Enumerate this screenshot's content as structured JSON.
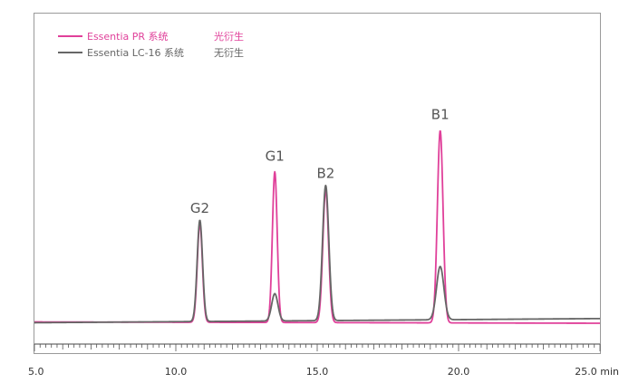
{
  "chart_data": {
    "type": "line",
    "xlabel": "",
    "ylabel": "",
    "xlim": [
      5.0,
      25.0
    ],
    "ylim": [
      0,
      100
    ],
    "x_unit": "min",
    "x_ticks": [
      {
        "value": 5.0,
        "label": "5.0"
      },
      {
        "value": 10.0,
        "label": "10.0"
      },
      {
        "value": 15.0,
        "label": "15.0"
      },
      {
        "value": 20.0,
        "label": "20.0"
      },
      {
        "value": 25.0,
        "label": "25.0 min"
      }
    ],
    "grid": false,
    "legend_position": "top-left",
    "legend": [
      {
        "name": "Essentia PR 系统",
        "note": "光衍生",
        "color": "#e0409a"
      },
      {
        "name": "Essentia LC-16 系统",
        "note": "无衍生",
        "color": "#666666"
      }
    ],
    "series": [
      {
        "name": "Essentia PR 系统",
        "color": "#e0409a",
        "baseline": 0.5,
        "drift": -0.5,
        "peaks": [
          {
            "x": 10.85,
            "height": 38,
            "sigma": 0.09
          },
          {
            "x": 13.5,
            "height": 58,
            "sigma": 0.085
          },
          {
            "x": 15.3,
            "height": 51,
            "sigma": 0.1
          },
          {
            "x": 19.35,
            "height": 74,
            "sigma": 0.1
          }
        ]
      },
      {
        "name": "Essentia LC-16 系统",
        "color": "#666666",
        "baseline": 0.2,
        "drift": 1.6,
        "peaks": [
          {
            "x": 10.85,
            "height": 39,
            "sigma": 0.095
          },
          {
            "x": 13.5,
            "height": 10.5,
            "sigma": 0.11
          },
          {
            "x": 15.3,
            "height": 52,
            "sigma": 0.11
          },
          {
            "x": 19.35,
            "height": 20.5,
            "sigma": 0.13
          }
        ]
      }
    ],
    "annotations": [
      {
        "text": "G2",
        "x": 10.85,
        "y": 42.5
      },
      {
        "text": "G1",
        "x": 13.5,
        "y": 62.5
      },
      {
        "text": "B2",
        "x": 15.3,
        "y": 56
      },
      {
        "text": "B1",
        "x": 19.35,
        "y": 78.5
      }
    ]
  }
}
